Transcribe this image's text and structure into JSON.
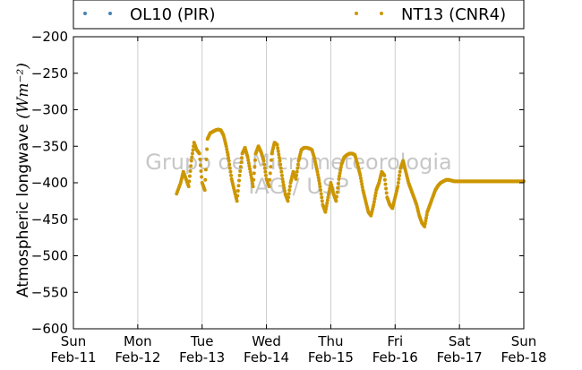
{
  "chart_data": {
    "type": "scatter",
    "title": "",
    "ylabel": "Atmospheric longwave",
    "ylabel_units": "(Wm⁻²)",
    "ylim": [
      -600,
      -200
    ],
    "yticks": [
      -200,
      -250,
      -300,
      -350,
      -400,
      -450,
      -500,
      -550,
      -600
    ],
    "ytick_labels": [
      "−200",
      "−250",
      "−300",
      "−350",
      "−400",
      "−450",
      "−500",
      "−550",
      "−600"
    ],
    "xlim": [
      "2018-02-11",
      "2018-02-18"
    ],
    "xticks": [
      {
        "day": "Sun",
        "date": "Feb-11"
      },
      {
        "day": "Mon",
        "date": "Feb-12"
      },
      {
        "day": "Tue",
        "date": "Feb-13"
      },
      {
        "day": "Wed",
        "date": "Feb-14"
      },
      {
        "day": "Thu",
        "date": "Feb-15"
      },
      {
        "day": "Fri",
        "date": "Feb-16"
      },
      {
        "day": "Sat",
        "date": "Feb-17"
      },
      {
        "day": "Sun",
        "date": "Feb-18"
      }
    ],
    "grid": "vertical",
    "legend_position": "top",
    "watermark": [
      "Grupo de Micrometeorologia",
      "IAG / USP"
    ],
    "series": [
      {
        "name": "OL10 (PIR)",
        "color": "#4682b4",
        "x": [],
        "y": []
      },
      {
        "name": "NT13 (CNR4)",
        "color": "#cc9600",
        "x": [
          "2018-02-12T14:30",
          "2018-02-12T16:00",
          "2018-02-12T17:00",
          "2018-02-12T18:00",
          "2018-02-12T19:00",
          "2018-02-12T20:00",
          "2018-02-12T21:00",
          "2018-02-12T22:00",
          "2018-02-12T23:00",
          "2018-02-13T00:00",
          "2018-02-13T01:00",
          "2018-02-13T02:00",
          "2018-02-13T03:00",
          "2018-02-13T04:00",
          "2018-02-13T05:00",
          "2018-02-13T06:00",
          "2018-02-13T07:00",
          "2018-02-13T08:00",
          "2018-02-13T09:00",
          "2018-02-13T10:00",
          "2018-02-13T11:00",
          "2018-02-13T12:00",
          "2018-02-13T13:00",
          "2018-02-13T14:00",
          "2018-02-13T15:00",
          "2018-02-13T16:00",
          "2018-02-13T17:00",
          "2018-02-13T18:00",
          "2018-02-13T19:00",
          "2018-02-13T20:00",
          "2018-02-13T21:00",
          "2018-02-13T22:00",
          "2018-02-13T23:00",
          "2018-02-14T00:00",
          "2018-02-14T01:00",
          "2018-02-14T02:00",
          "2018-02-14T03:00",
          "2018-02-14T04:00",
          "2018-02-14T05:00",
          "2018-02-14T06:00",
          "2018-02-14T07:00",
          "2018-02-14T08:00",
          "2018-02-14T09:00",
          "2018-02-14T10:00",
          "2018-02-14T11:00",
          "2018-02-14T12:00",
          "2018-02-14T13:00",
          "2018-02-14T14:00",
          "2018-02-14T15:00",
          "2018-02-14T16:00",
          "2018-02-14T17:00",
          "2018-02-14T18:00",
          "2018-02-14T19:00",
          "2018-02-14T20:00",
          "2018-02-14T21:00",
          "2018-02-14T22:00",
          "2018-02-14T23:00",
          "2018-02-15T00:00",
          "2018-02-15T01:00",
          "2018-02-15T02:00",
          "2018-02-15T03:00",
          "2018-02-15T04:00",
          "2018-02-15T05:00",
          "2018-02-15T06:00",
          "2018-02-15T07:00",
          "2018-02-15T08:00",
          "2018-02-15T09:00",
          "2018-02-15T10:00",
          "2018-02-15T11:00",
          "2018-02-15T12:00",
          "2018-02-15T13:00",
          "2018-02-15T14:00",
          "2018-02-15T15:00",
          "2018-02-15T16:00",
          "2018-02-15T17:00",
          "2018-02-15T18:00",
          "2018-02-15T19:00",
          "2018-02-15T20:00",
          "2018-02-15T21:00",
          "2018-02-15T22:00",
          "2018-02-15T23:00",
          "2018-02-16T00:00",
          "2018-02-16T01:00",
          "2018-02-16T02:00",
          "2018-02-16T03:00",
          "2018-02-16T04:00",
          "2018-02-16T05:00",
          "2018-02-16T06:00",
          "2018-02-16T07:00",
          "2018-02-16T08:00",
          "2018-02-16T09:00",
          "2018-02-16T10:00",
          "2018-02-16T11:00",
          "2018-02-16T12:00",
          "2018-02-16T13:00",
          "2018-02-16T14:00",
          "2018-02-16T15:00",
          "2018-02-16T16:00",
          "2018-02-16T17:00",
          "2018-02-16T18:00",
          "2018-02-16T19:00",
          "2018-02-16T20:00",
          "2018-02-16T21:00",
          "2018-02-16T22:00",
          "2018-02-16T23:00",
          "2018-02-17T00:00",
          "2018-02-17T01:00",
          "2018-02-17T02:00",
          "2018-02-17T03:00",
          "2018-02-17T04:00",
          "2018-02-17T05:00",
          "2018-02-17T06:00",
          "2018-02-17T07:00",
          "2018-02-17T08:00",
          "2018-02-17T09:00",
          "2018-02-17T10:00",
          "2018-02-17T11:00",
          "2018-02-17T12:00",
          "2018-02-17T13:00",
          "2018-02-17T14:00",
          "2018-02-17T15:00",
          "2018-02-17T16:00",
          "2018-02-17T17:00",
          "2018-02-17T18:00",
          "2018-02-17T19:00",
          "2018-02-17T20:00",
          "2018-02-17T21:00",
          "2018-02-17T22:00",
          "2018-02-17T23:00",
          "2018-02-18T00:00"
        ],
        "y": [
          -415,
          -400,
          -385,
          -395,
          -405,
          -370,
          -345,
          -355,
          -360,
          -400,
          -410,
          -340,
          -332,
          -330,
          -328,
          -327,
          -328,
          -335,
          -350,
          -370,
          -395,
          -410,
          -425,
          -390,
          -360,
          -352,
          -365,
          -385,
          -405,
          -360,
          -350,
          -358,
          -370,
          -395,
          -405,
          -360,
          -345,
          -348,
          -370,
          -395,
          -415,
          -425,
          -400,
          -385,
          -395,
          -370,
          -355,
          -352,
          -352,
          -353,
          -355,
          -368,
          -385,
          -405,
          -430,
          -440,
          -420,
          -400,
          -415,
          -425,
          -395,
          -375,
          -365,
          -362,
          -360,
          -360,
          -362,
          -375,
          -390,
          -410,
          -425,
          -440,
          -445,
          -430,
          -410,
          -400,
          -385,
          -390,
          -420,
          -430,
          -435,
          -420,
          -405,
          -380,
          -370,
          -385,
          -400,
          -410,
          -420,
          -430,
          -445,
          -455,
          -460,
          -440,
          -430,
          -420,
          -410,
          -404,
          -400,
          -398,
          -396,
          -396,
          -397,
          -398,
          -398,
          -398,
          -398,
          -398,
          -398,
          -398,
          -398,
          -398,
          -398,
          -398,
          -398,
          -398,
          -398,
          -398,
          -398,
          -398,
          -398,
          -398,
          -398,
          -398,
          -398,
          -398,
          -398,
          -398,
          -398,
          -398
        ]
      }
    ]
  }
}
